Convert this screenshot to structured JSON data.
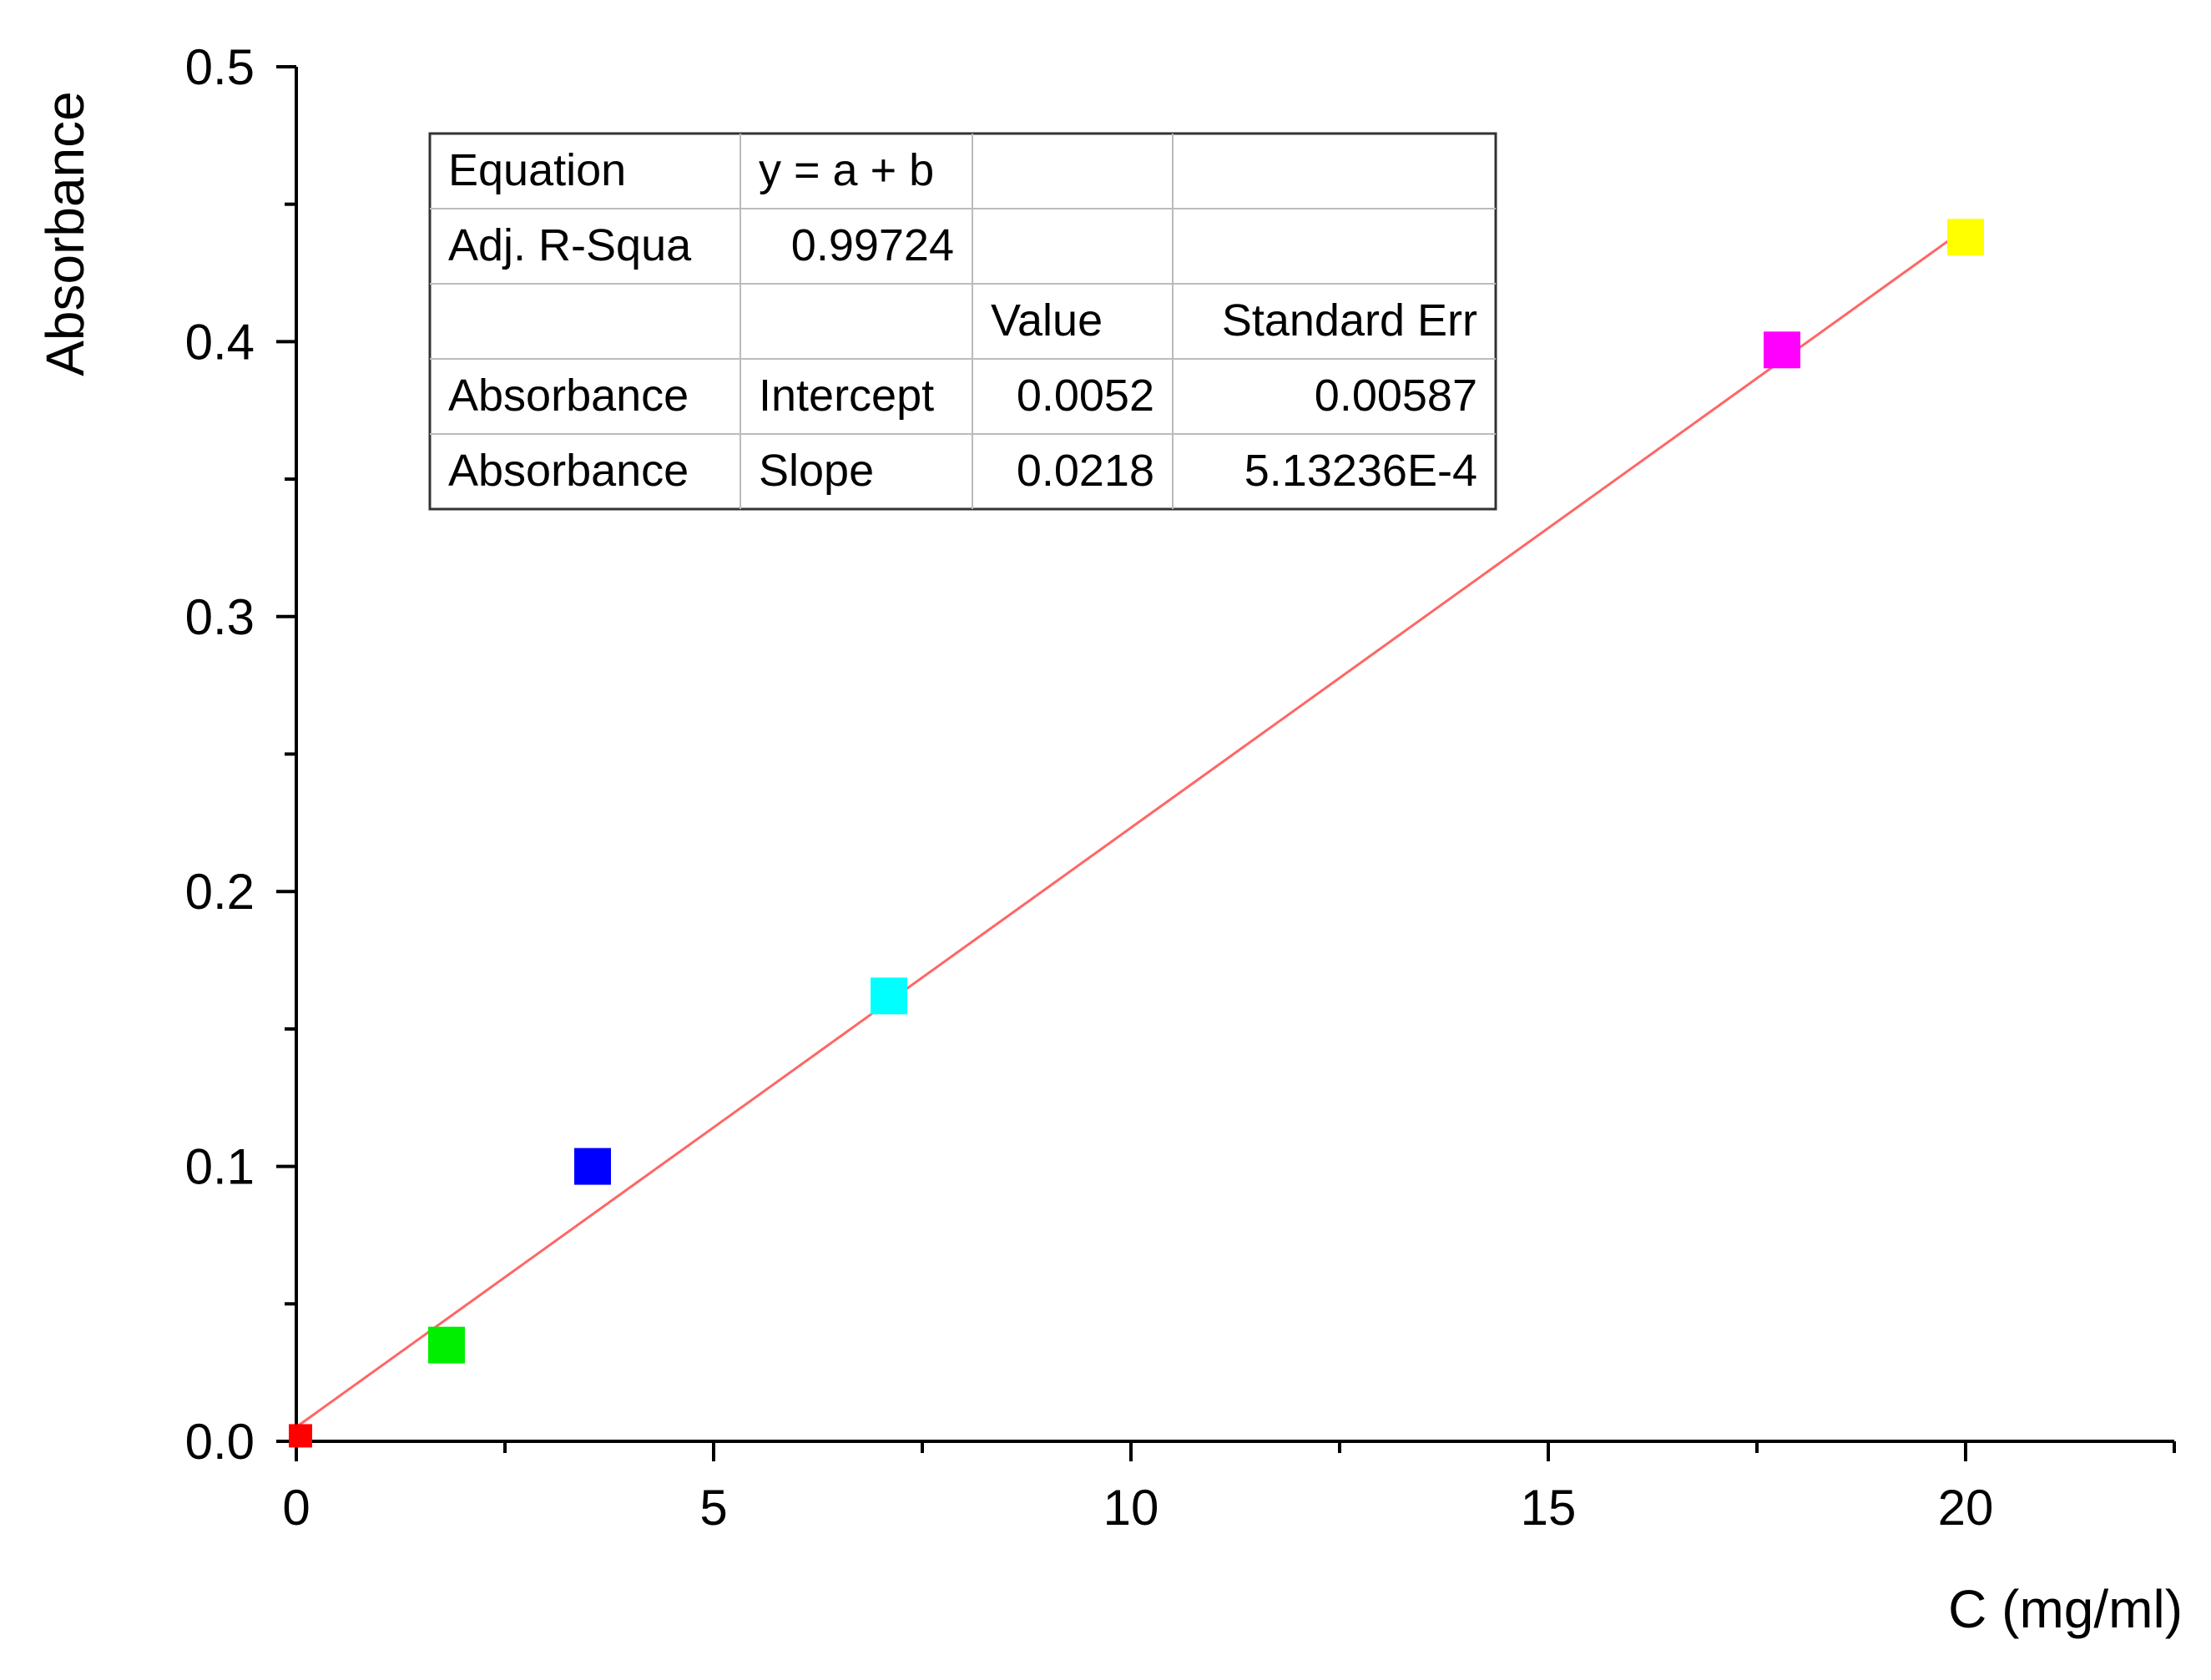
{
  "chart_data": {
    "type": "scatter",
    "xlabel": "C (mg/ml)",
    "ylabel": "Absorbance",
    "xlim": [
      0,
      22.5
    ],
    "ylim": [
      0,
      0.5
    ],
    "x_ticks": [
      "0",
      "5",
      "10",
      "15",
      "20"
    ],
    "x_tick_values": [
      0,
      5,
      10,
      15,
      20
    ],
    "x_minor_tick_values": [
      2.5,
      7.5,
      12.5,
      17.5,
      22.5
    ],
    "y_ticks": [
      "0.0",
      "0.1",
      "0.2",
      "0.3",
      "0.4",
      "0.5"
    ],
    "y_tick_values": [
      0,
      0.1,
      0.2,
      0.3,
      0.4,
      0.5
    ],
    "y_minor_tick_values": [
      0.05,
      0.15,
      0.25,
      0.35,
      0.45
    ],
    "grid": false,
    "legend": "none",
    "points": [
      {
        "x": 0.05,
        "y": 0.002,
        "color": "#ff0000"
      },
      {
        "x": 1.8,
        "y": 0.035,
        "color": "#00ee00"
      },
      {
        "x": 3.55,
        "y": 0.1,
        "color": "#0000ff"
      },
      {
        "x": 7.1,
        "y": 0.162,
        "color": "#00ffff"
      },
      {
        "x": 17.8,
        "y": 0.397,
        "color": "#ff00ff"
      },
      {
        "x": 20.0,
        "y": 0.438,
        "color": "#ffff00"
      }
    ],
    "fit_line": {
      "intercept": 0.0052,
      "slope": 0.0218,
      "x_range": [
        0,
        20
      ],
      "color": "#ff6666"
    },
    "fit_table": {
      "rows": [
        [
          "Equation",
          "y = a + b",
          "",
          ""
        ],
        [
          "Adj. R-Squa",
          "0.99724",
          "",
          ""
        ],
        [
          "",
          "",
          "Value",
          "Standard Err"
        ],
        [
          "Absorbance",
          "Intercept",
          "0.0052",
          "0.00587"
        ],
        [
          "Absorbance",
          "Slope",
          "0.0218",
          "5.13236E-4"
        ]
      ]
    }
  }
}
